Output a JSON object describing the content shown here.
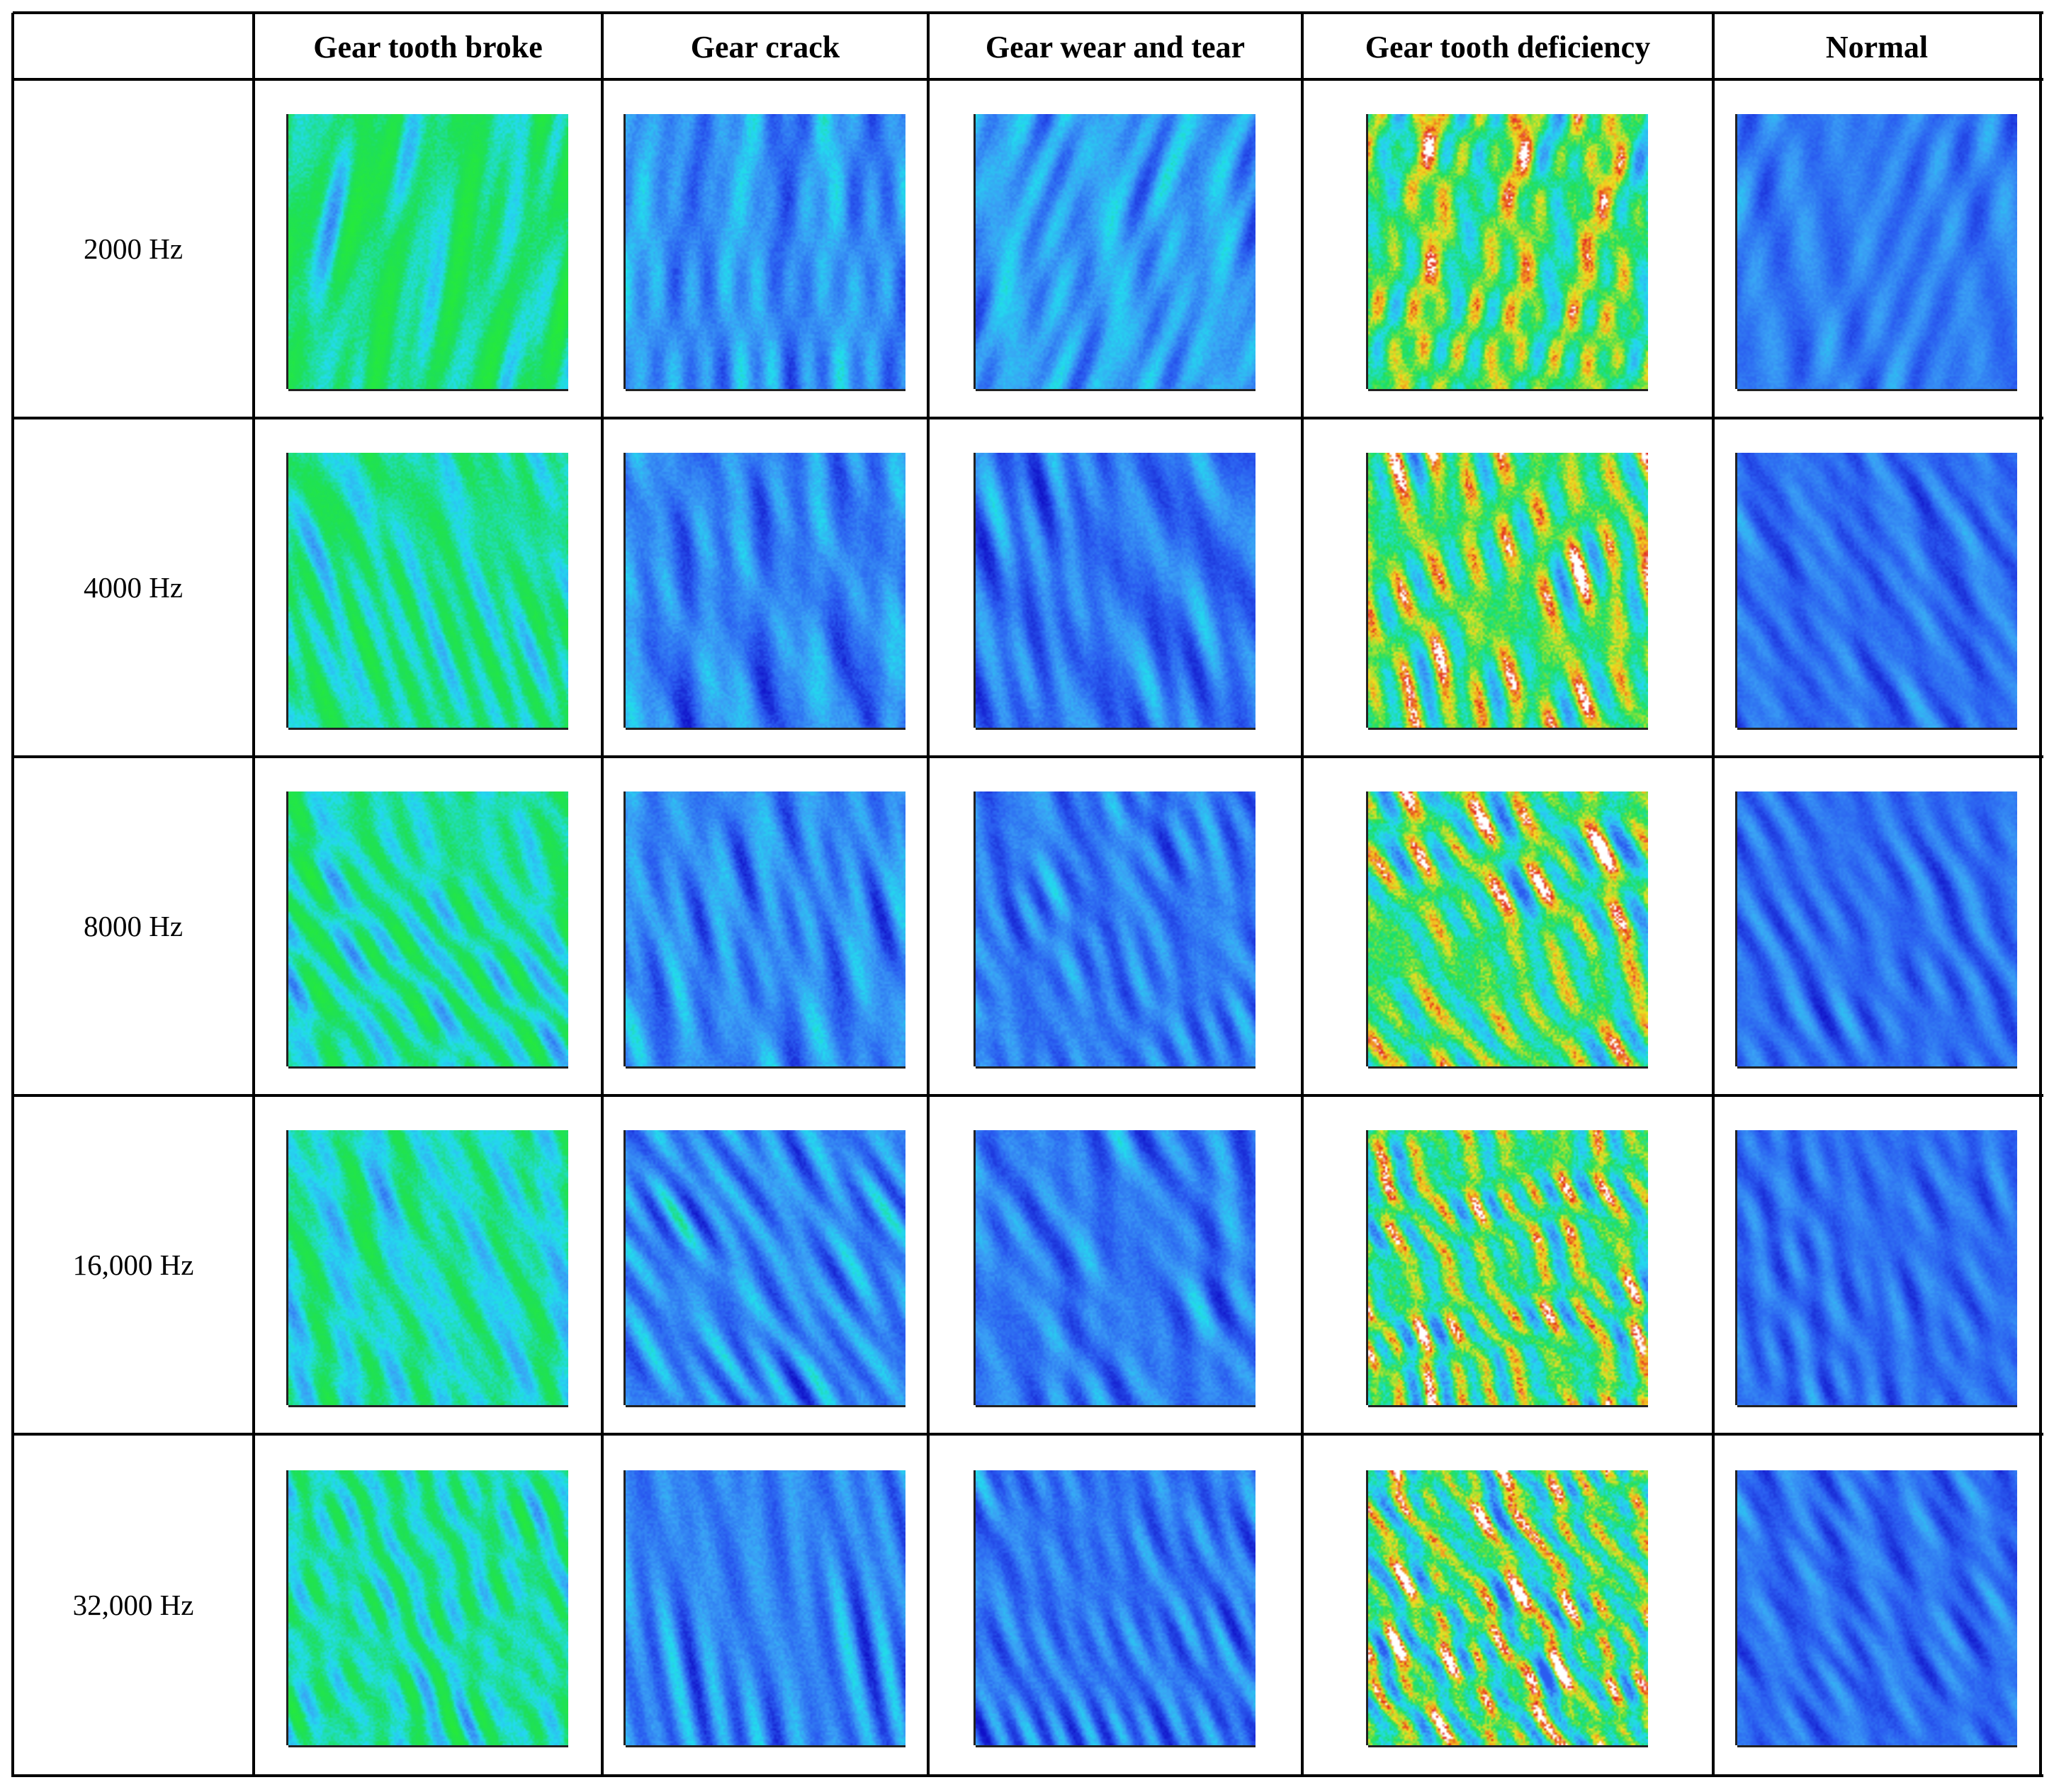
{
  "table": {
    "columns": [
      {
        "label": "Gear tooth broke",
        "palette": "green-cyan"
      },
      {
        "label": "Gear crack",
        "palette": "blue-cyan-green"
      },
      {
        "label": "Gear wear and tear",
        "palette": "cyan-blue"
      },
      {
        "label": "Gear tooth deficiency",
        "palette": "green-yellow-red"
      },
      {
        "label": "Normal",
        "palette": "blue"
      }
    ],
    "rows": [
      {
        "label": "2000 Hz"
      },
      {
        "label": "4000 Hz"
      },
      {
        "label": "8000 Hz"
      },
      {
        "label": "16,000 Hz"
      },
      {
        "label": "32,000 Hz"
      }
    ]
  },
  "colors": {
    "grid_line": "#000000",
    "dark_blue": "#1010c8",
    "blue": "#2a5cf0",
    "light_blue": "#3aa0f5",
    "cyan": "#22dcee",
    "green": "#1ee05a",
    "bright_green": "#2af02a",
    "yellow": "#f0e020",
    "orange": "#f09020",
    "red": "#e02020",
    "white": "#ffffff"
  }
}
